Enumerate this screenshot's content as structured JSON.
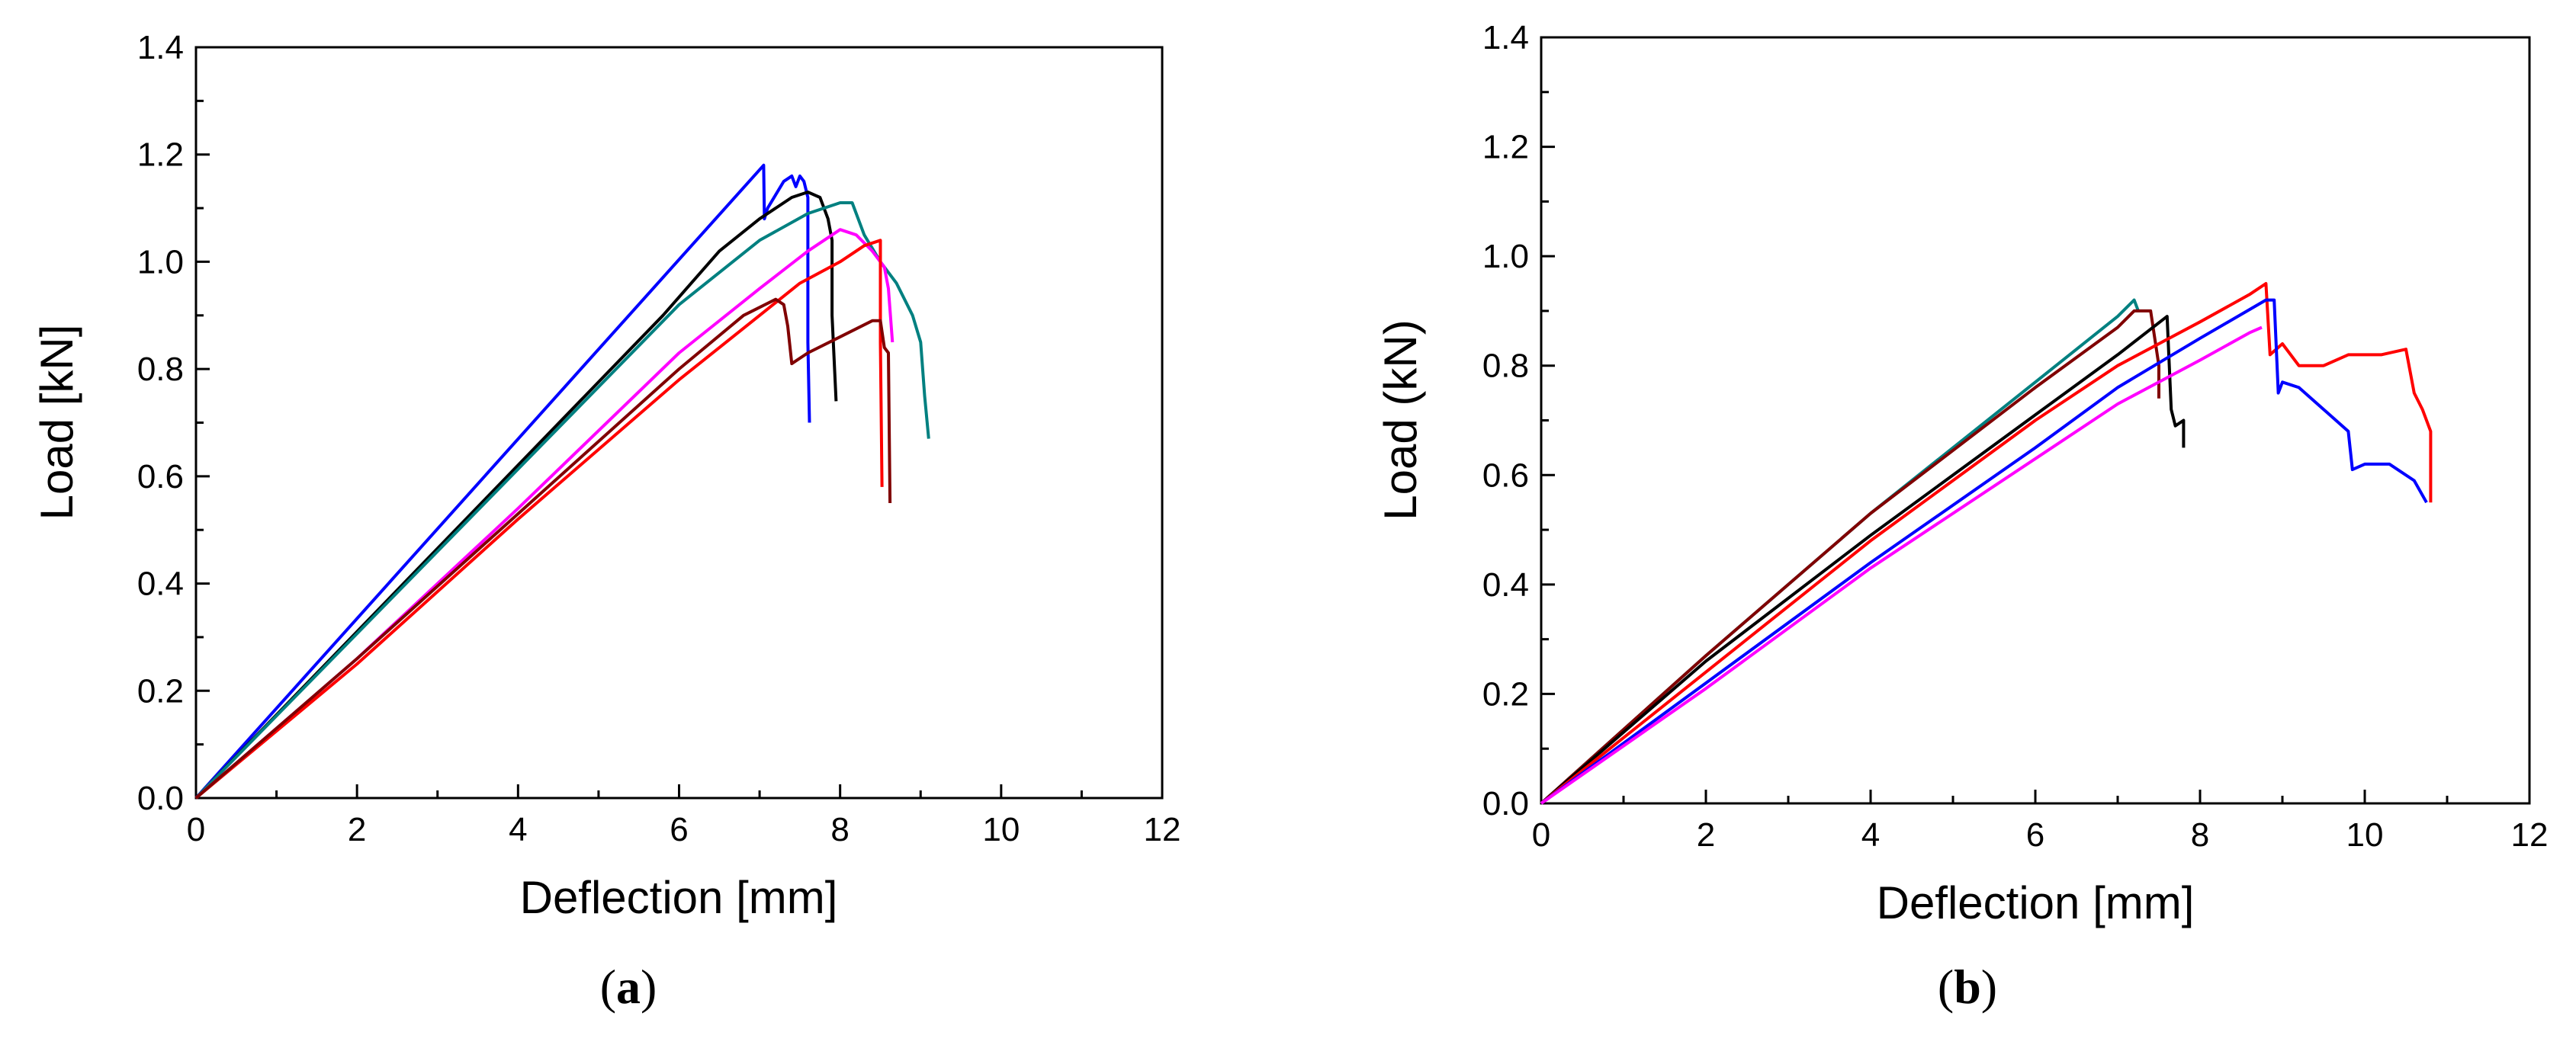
{
  "chart_data": [
    {
      "type": "line",
      "panel": "a",
      "panel_label": "a",
      "xlabel": "Deflection [mm]",
      "ylabel": "Load [kN]",
      "xlim": [
        0,
        12
      ],
      "ylim": [
        0,
        1.4
      ],
      "xticks": [
        "0",
        "2",
        "4",
        "6",
        "8",
        "10",
        "12"
      ],
      "yticks": [
        "0.0",
        "0.2",
        "0.4",
        "0.6",
        "0.8",
        "1.0",
        "1.2",
        "1.4"
      ],
      "grid": false,
      "series": [
        {
          "name": "blue",
          "color": "#0000ff",
          "x": [
            0,
            7.05,
            7.06,
            7.1,
            7.3,
            7.4,
            7.45,
            7.5,
            7.55,
            7.6,
            7.6,
            7.62
          ],
          "y": [
            0,
            1.18,
            1.08,
            1.1,
            1.15,
            1.16,
            1.14,
            1.16,
            1.15,
            1.12,
            0.85,
            0.7
          ]
        },
        {
          "name": "black",
          "color": "#000000",
          "x": [
            0,
            5.8,
            6.5,
            7.0,
            7.4,
            7.6,
            7.75,
            7.85,
            7.9,
            7.9,
            7.95
          ],
          "y": [
            0,
            0.9,
            1.02,
            1.08,
            1.12,
            1.13,
            1.12,
            1.08,
            1.04,
            0.9,
            0.74
          ]
        },
        {
          "name": "teal",
          "color": "#008080",
          "x": [
            0,
            6.0,
            7.0,
            7.6,
            8.0,
            8.15,
            8.3,
            8.5,
            8.7,
            8.9,
            9.0,
            9.05,
            9.1
          ],
          "y": [
            0,
            0.92,
            1.04,
            1.09,
            1.11,
            1.11,
            1.05,
            1.0,
            0.96,
            0.9,
            0.85,
            0.75,
            0.67
          ]
        },
        {
          "name": "magenta",
          "color": "#ff00ff",
          "x": [
            0,
            2.0,
            4.0,
            6.0,
            7.0,
            7.6,
            8.0,
            8.2,
            8.4,
            8.55,
            8.6,
            8.65
          ],
          "y": [
            0,
            0.26,
            0.54,
            0.83,
            0.95,
            1.02,
            1.06,
            1.05,
            1.02,
            0.99,
            0.95,
            0.85
          ]
        },
        {
          "name": "red",
          "color": "#ff0000",
          "x": [
            0,
            2.0,
            4.0,
            6.0,
            7.0,
            7.5,
            8.0,
            8.3,
            8.5,
            8.5,
            8.52
          ],
          "y": [
            0,
            0.25,
            0.52,
            0.78,
            0.9,
            0.96,
            1.0,
            1.03,
            1.04,
            0.85,
            0.58
          ]
        },
        {
          "name": "dark-red",
          "color": "#800000",
          "x": [
            0,
            2.0,
            4.0,
            6.0,
            6.8,
            7.2,
            7.3,
            7.35,
            7.4,
            7.6,
            8.0,
            8.4,
            8.5,
            8.55,
            8.6,
            8.62
          ],
          "y": [
            0,
            0.26,
            0.53,
            0.8,
            0.9,
            0.93,
            0.92,
            0.88,
            0.81,
            0.83,
            0.86,
            0.89,
            0.89,
            0.84,
            0.83,
            0.55
          ]
        }
      ]
    },
    {
      "type": "line",
      "panel": "b",
      "panel_label": "b",
      "xlabel": "Deflection [mm]",
      "ylabel": "Load (kN)",
      "xlim": [
        0,
        12
      ],
      "ylim": [
        0,
        1.4
      ],
      "xticks": [
        "0",
        "2",
        "4",
        "6",
        "8",
        "10",
        "12"
      ],
      "yticks": [
        "0.0",
        "0.2",
        "0.4",
        "0.6",
        "0.8",
        "1.0",
        "1.2",
        "1.4"
      ],
      "grid": false,
      "series": [
        {
          "name": "teal",
          "color": "#008080",
          "x": [
            0,
            2.0,
            4.0,
            6.0,
            7.0,
            7.2,
            7.25
          ],
          "y": [
            0,
            0.27,
            0.53,
            0.77,
            0.89,
            0.92,
            0.9
          ]
        },
        {
          "name": "dark-red",
          "color": "#800000",
          "x": [
            0,
            2.0,
            4.0,
            6.0,
            7.0,
            7.2,
            7.4,
            7.45,
            7.5,
            7.5
          ],
          "y": [
            0,
            0.27,
            0.53,
            0.76,
            0.87,
            0.9,
            0.9,
            0.85,
            0.8,
            0.74
          ]
        },
        {
          "name": "black",
          "color": "#000000",
          "x": [
            0,
            2.0,
            4.0,
            6.0,
            7.0,
            7.6,
            7.65,
            7.7,
            7.8,
            7.8
          ],
          "y": [
            0,
            0.26,
            0.49,
            0.71,
            0.82,
            0.89,
            0.72,
            0.69,
            0.7,
            0.65
          ]
        },
        {
          "name": "red",
          "color": "#ff0000",
          "x": [
            0,
            2.0,
            4.0,
            6.0,
            7.0,
            8.0,
            8.6,
            8.8,
            8.85,
            9.0,
            9.2,
            9.5,
            9.8,
            10.2,
            10.5,
            10.6,
            10.7,
            10.8,
            10.8
          ],
          "y": [
            0,
            0.24,
            0.48,
            0.7,
            0.8,
            0.88,
            0.93,
            0.95,
            0.82,
            0.84,
            0.8,
            0.8,
            0.82,
            0.82,
            0.83,
            0.75,
            0.72,
            0.68,
            0.55
          ]
        },
        {
          "name": "blue",
          "color": "#0000ff",
          "x": [
            0,
            2.0,
            4.0,
            6.0,
            7.0,
            8.0,
            8.8,
            8.9,
            8.95,
            9.0,
            9.2,
            9.5,
            9.8,
            9.85,
            10.0,
            10.3,
            10.6,
            10.75
          ],
          "y": [
            0,
            0.22,
            0.44,
            0.65,
            0.76,
            0.85,
            0.92,
            0.92,
            0.75,
            0.77,
            0.76,
            0.72,
            0.68,
            0.61,
            0.62,
            0.62,
            0.59,
            0.55
          ]
        },
        {
          "name": "magenta",
          "color": "#ff00ff",
          "x": [
            0,
            2.0,
            4.0,
            6.0,
            7.0,
            8.0,
            8.6,
            8.75
          ],
          "y": [
            0,
            0.21,
            0.43,
            0.63,
            0.73,
            0.81,
            0.86,
            0.87
          ]
        }
      ]
    }
  ]
}
